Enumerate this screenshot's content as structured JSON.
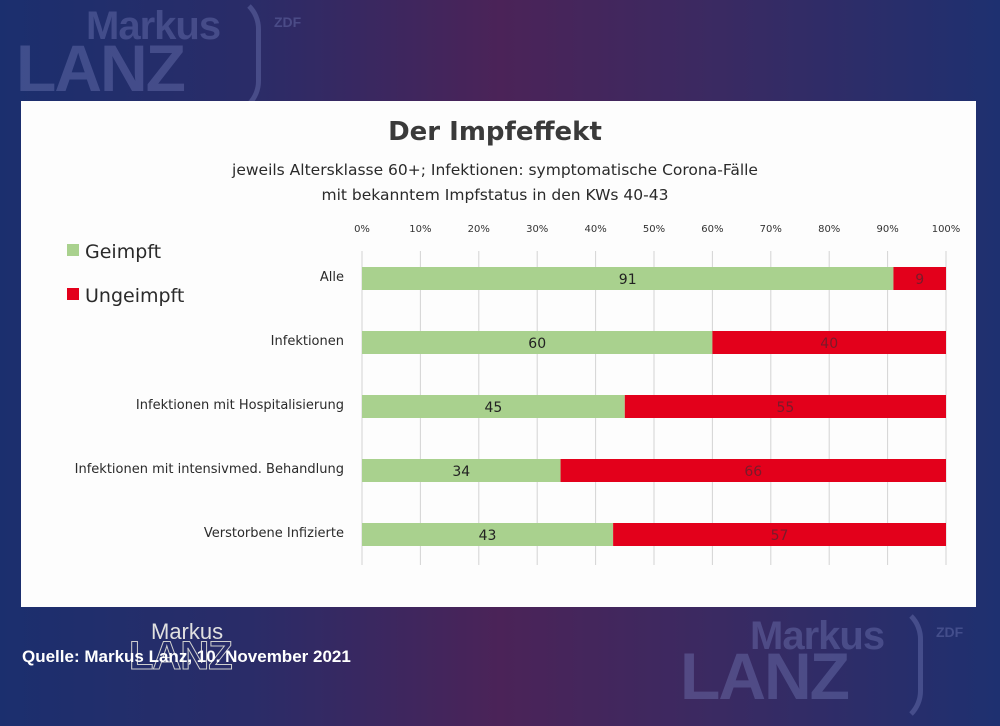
{
  "branding": {
    "show_name_line1": "Markus",
    "show_name_line2": "LANZ",
    "broadcaster": "ZDF"
  },
  "source_caption": "Quelle: Markus Lanz, 10. November 2021",
  "watermark": {
    "line1": "Markus",
    "line2": "LANZ"
  },
  "chart_data": {
    "type": "bar",
    "orientation": "horizontal",
    "stacked": true,
    "title": "Der Impfeffekt",
    "subtitle_lines": [
      "jeweils Altersklasse 60+; Infektionen: symptomatische Corona-Fälle",
      "mit bekanntem Impfstatus in den KWs 40-43"
    ],
    "categories": [
      "Alle",
      "Infektionen",
      "Infektionen mit Hospitalisierung",
      "Infektionen mit intensivmed. Behandlung",
      "Verstorbene Infizierte"
    ],
    "series": [
      {
        "name": "Geimpft",
        "color": "#a9d18e",
        "label_color": "#222222",
        "values": [
          91,
          60,
          45,
          34,
          43
        ]
      },
      {
        "name": "Ungeimpft",
        "color": "#e3001b",
        "label_color": "#7a1a2a",
        "values": [
          9,
          40,
          55,
          66,
          57
        ]
      }
    ],
    "xlabel": "",
    "ylabel": "",
    "xlim": [
      0,
      100
    ],
    "x_ticks": [
      "0%",
      "10%",
      "20%",
      "30%",
      "40%",
      "50%",
      "60%",
      "70%",
      "80%",
      "90%",
      "100%"
    ],
    "x_axis_position": "top",
    "grid": true,
    "legend_position": "top-left"
  }
}
